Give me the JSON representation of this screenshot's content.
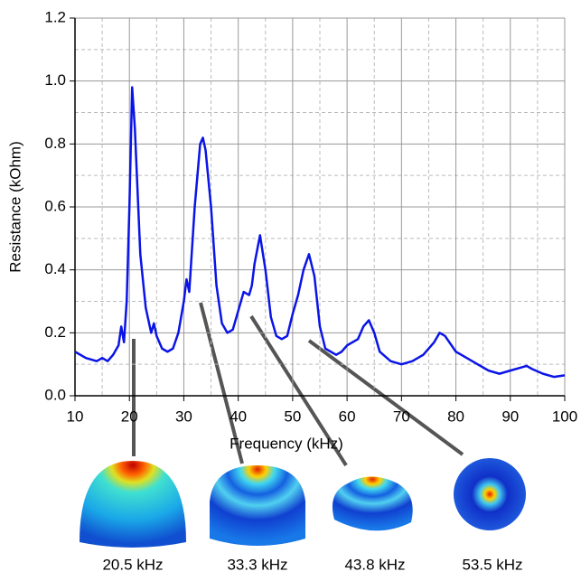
{
  "chart_data": {
    "type": "line",
    "x_label": "Frequency (kHz)",
    "y_label": "Resistance (kOhm)",
    "xlim": [
      10,
      100
    ],
    "ylim": [
      0,
      1.2
    ],
    "xticks": [
      10,
      20,
      30,
      40,
      50,
      60,
      70,
      80,
      90,
      100
    ],
    "yticks": [
      {
        "value": 0,
        "label": "0.0"
      },
      0.2,
      0.4,
      0.6,
      0.8,
      {
        "value": 1,
        "label": "1.0"
      },
      1.2
    ],
    "grid": true,
    "x": [
      10,
      12,
      14,
      15,
      16,
      17,
      18,
      18.5,
      19,
      19.5,
      20,
      20.5,
      21,
      22,
      23,
      24,
      24.5,
      25,
      26,
      27,
      28,
      29,
      30,
      30.5,
      31,
      32,
      33,
      33.5,
      34,
      35,
      36,
      37,
      38,
      39,
      40,
      41,
      42,
      42.5,
      43,
      44,
      45,
      46,
      47,
      48,
      49,
      50,
      51,
      52,
      53,
      54,
      55,
      56,
      57,
      58,
      59,
      60,
      62,
      63,
      64,
      65,
      66,
      68,
      70,
      72,
      74,
      76,
      77,
      78,
      80,
      82,
      84,
      86,
      88,
      90,
      92,
      93,
      94,
      96,
      98,
      100
    ],
    "series": [
      {
        "name": "Resistance",
        "color": "#0a14e6",
        "values": [
          0.14,
          0.12,
          0.11,
          0.12,
          0.11,
          0.13,
          0.16,
          0.22,
          0.17,
          0.3,
          0.6,
          0.98,
          0.85,
          0.45,
          0.28,
          0.2,
          0.23,
          0.19,
          0.15,
          0.14,
          0.15,
          0.2,
          0.3,
          0.37,
          0.33,
          0.6,
          0.8,
          0.82,
          0.78,
          0.6,
          0.35,
          0.23,
          0.2,
          0.21,
          0.27,
          0.33,
          0.32,
          0.35,
          0.42,
          0.51,
          0.4,
          0.25,
          0.19,
          0.18,
          0.19,
          0.26,
          0.32,
          0.4,
          0.45,
          0.38,
          0.22,
          0.15,
          0.14,
          0.13,
          0.14,
          0.16,
          0.18,
          0.22,
          0.24,
          0.2,
          0.14,
          0.11,
          0.1,
          0.11,
          0.13,
          0.17,
          0.2,
          0.19,
          0.14,
          0.12,
          0.1,
          0.08,
          0.07,
          0.08,
          0.09,
          0.095,
          0.085,
          0.07,
          0.06,
          0.065
        ]
      }
    ],
    "annotations": [
      "20.5 kHz",
      "33.3 kHz",
      "43.8 kHz",
      "53.5 kHz"
    ]
  }
}
